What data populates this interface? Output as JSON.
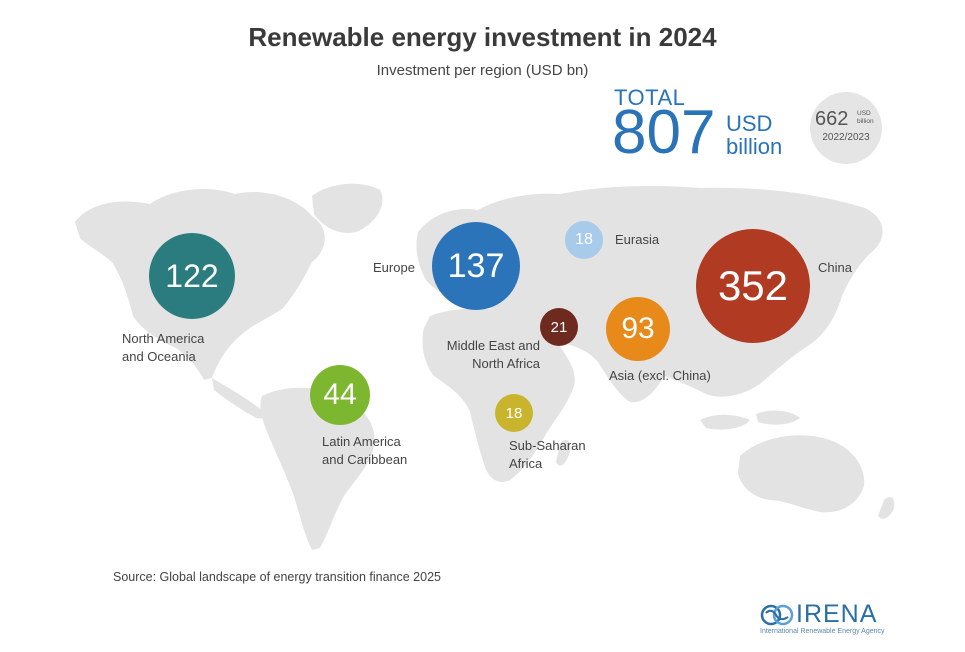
{
  "title": "Renewable energy investment in 2024",
  "subtitle": "Investment per region (USD bn)",
  "total": {
    "label": "TOTAL",
    "value": "807",
    "unit": "USD billion"
  },
  "previous": {
    "value": "662",
    "unit": "USD billion",
    "period": "2022/2023"
  },
  "source": "Source: Global landscape of energy transition finance 2025",
  "logo": {
    "name": "IRENA",
    "subtitle": "International Renewable Energy Agency"
  },
  "colors": {
    "map": "#e3e3e3",
    "accent": "#2a73b8"
  },
  "chart_data": {
    "type": "bubble-map",
    "title": "Renewable energy investment in 2024",
    "subtitle": "Investment per region (USD bn)",
    "unit": "USD bn",
    "regions": [
      {
        "name": "North America and Oceania",
        "value": 122,
        "color": "#2a7c7e"
      },
      {
        "name": "Latin America and Caribbean",
        "value": 44,
        "color": "#7db72f"
      },
      {
        "name": "Europe",
        "value": 137,
        "color": "#2b74b9"
      },
      {
        "name": "Eurasia",
        "value": 18,
        "color": "#a9cbeb"
      },
      {
        "name": "Middle East and North Africa",
        "value": 21,
        "color": "#6e2a1e"
      },
      {
        "name": "Sub-Saharan Africa",
        "value": 18,
        "color": "#c9b52d"
      },
      {
        "name": "Asia (excl. China)",
        "value": 93,
        "color": "#e88a1a"
      },
      {
        "name": "China",
        "value": 352,
        "color": "#b03a22"
      }
    ]
  }
}
